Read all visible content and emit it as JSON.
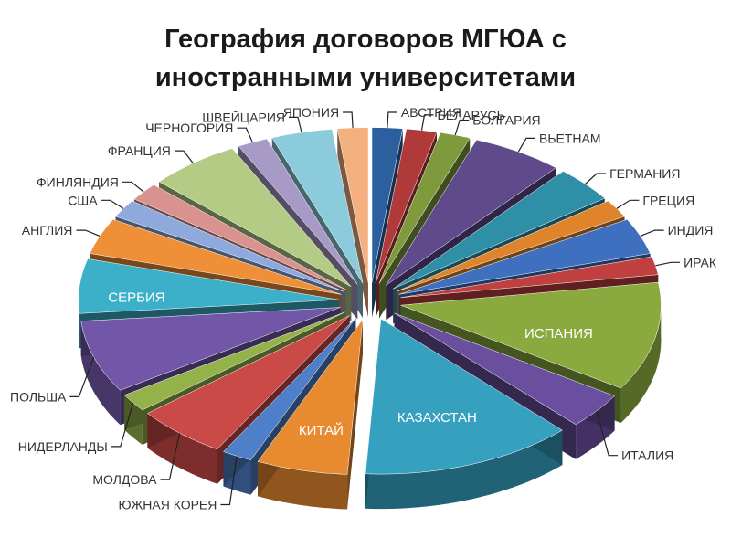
{
  "chart_data": {
    "type": "pie",
    "title_lines": [
      "География договоров МГЮА с",
      "иностранными университетами"
    ],
    "categories": [
      "АВСТРИЯ",
      "БЕЛАРУСЬ",
      "БОЛГАРИЯ",
      "ВЬЕТНАМ",
      "ГЕРМАНИЯ",
      "ГРЕЦИЯ",
      "ИНДИЯ",
      "ИРАК",
      "ИСПАНИЯ",
      "ИТАЛИЯ",
      "КАЗАХСТАН",
      "КИТАЙ",
      "ЮЖНАЯ КОРЕЯ",
      "МОЛДОВА",
      "НИДЕРЛАНДЫ",
      "ПОЛЬША",
      "СЕРБИЯ",
      "АНГЛИЯ",
      "США",
      "ФИНЛЯНДИЯ",
      "ФРАНЦИЯ",
      "ЧЕРНОГОРИЯ",
      "ШВЕЙЦАРИЯ",
      "ЯПОНИЯ"
    ],
    "values": [
      1,
      1,
      1,
      3,
      2,
      1,
      2,
      1,
      6,
      2,
      7,
      3,
      1,
      3,
      1,
      4,
      3,
      2,
      1,
      1,
      3,
      1,
      2,
      1
    ],
    "colors": [
      "#2c5f9e",
      "#b03a3a",
      "#7f9a3c",
      "#5f4a8b",
      "#2f8fa6",
      "#e0842c",
      "#3f6fbf",
      "#c0403f",
      "#8aaa3f",
      "#6a4f9e",
      "#36a0bf",
      "#e88a30",
      "#4f7fc8",
      "#c94a47",
      "#93b24a",
      "#7257a8",
      "#3cafc9",
      "#ef9038",
      "#8ea9db",
      "#d9928f",
      "#b4cb85",
      "#a79ac6",
      "#8ccbdc",
      "#f5b07f"
    ],
    "legend": "none (labels placed around the pie)"
  }
}
